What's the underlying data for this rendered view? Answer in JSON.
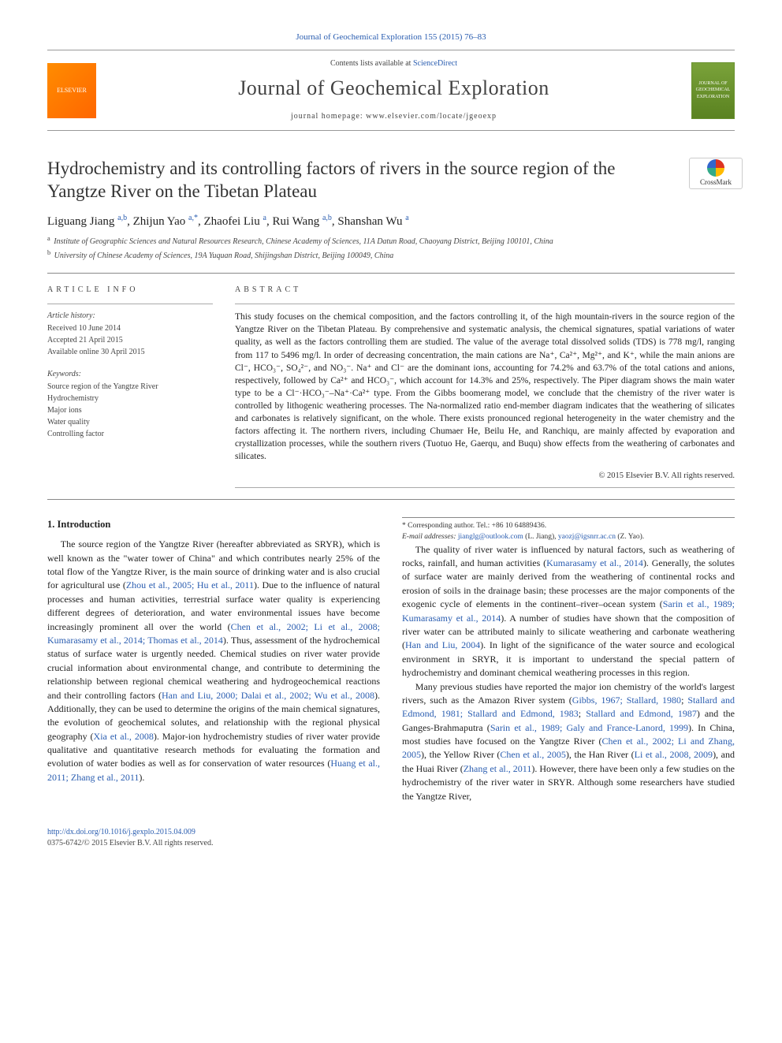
{
  "top_link": {
    "prefix": "Journal of Geochemical Exploration 155 (2015) 76–83"
  },
  "header": {
    "contents_line_prefix": "Contents lists available at ",
    "contents_line_link": "ScienceDirect",
    "journal_title": "Journal of Geochemical Exploration",
    "homepage_prefix": "journal homepage: ",
    "homepage_url": "www.elsevier.com/locate/jgeoexp",
    "elsevier_label": "ELSEVIER",
    "cover_label": "JOURNAL OF GEOCHEMICAL EXPLORATION"
  },
  "article": {
    "title": "Hydrochemistry and its controlling factors of rivers in the source region of the Yangtze River on the Tibetan Plateau",
    "crossmark_label": "CrossMark",
    "authors_html": "Liguang Jiang <sup>a,b</sup>, Zhijun Yao <sup>a,*</sup>, Zhaofei Liu <sup>a</sup>, Rui Wang <sup>a,b</sup>, Shanshan Wu <sup>a</sup>",
    "affiliations": [
      {
        "sup": "a",
        "text": "Institute of Geographic Sciences and Natural Resources Research, Chinese Academy of Sciences, 11A Datun Road, Chaoyang District, Beijing 100101, China"
      },
      {
        "sup": "b",
        "text": "University of Chinese Academy of Sciences, 19A Yuquan Road, Shijingshan District, Beijing 100049, China"
      }
    ]
  },
  "info": {
    "heading": "ARTICLE INFO",
    "history_label": "Article history:",
    "history": [
      "Received 10 June 2014",
      "Accepted 21 April 2015",
      "Available online 30 April 2015"
    ],
    "keywords_label": "Keywords:",
    "keywords": [
      "Source region of the Yangtze River",
      "Hydrochemistry",
      "Major ions",
      "Water quality",
      "Controlling factor"
    ]
  },
  "abstract": {
    "heading": "ABSTRACT",
    "text": "This study focuses on the chemical composition, and the factors controlling it, of the high mountain-rivers in the source region of the Yangtze River on the Tibetan Plateau. By comprehensive and systematic analysis, the chemical signatures, spatial variations of water quality, as well as the factors controlling them are studied. The value of the average total dissolved solids (TDS) is 778 mg/l, ranging from 117 to 5496 mg/l. In order of decreasing concentration, the main cations are Na⁺, Ca²⁺, Mg²⁺, and K⁺, while the main anions are Cl⁻, HCO₃⁻, SO₄²⁻, and NO₃⁻. Na⁺ and Cl⁻ are the dominant ions, accounting for 74.2% and 63.7% of the total cations and anions, respectively, followed by Ca²⁺ and HCO₃⁻, which account for 14.3% and 25%, respectively. The Piper diagram shows the main water type to be a Cl⁻·HCO₃⁻–Na⁺·Ca²⁺ type. From the Gibbs boomerang model, we conclude that the chemistry of the river water is controlled by lithogenic weathering processes. The Na-normalized ratio end-member diagram indicates that the weathering of silicates and carbonates is relatively significant, on the whole. There exists pronounced regional heterogeneity in the water chemistry and the factors affecting it. The northern rivers, including Chumaer He, Beilu He, and Ranchiqu, are mainly affected by evaporation and crystallization processes, while the southern rivers (Tuotuo He, Gaerqu, and Buqu) show effects from the weathering of carbonates and silicates.",
    "copyright": "© 2015 Elsevier B.V. All rights reserved."
  },
  "body": {
    "section_heading": "1. Introduction",
    "p1": "The source region of the Yangtze River (hereafter abbreviated as SRYR), which is well known as the \"water tower of China\" and which contributes nearly 25% of the total flow of the Yangtze River, is the main source of drinking water and is also crucial for agricultural use (",
    "p1_cite1": "Zhou et al., 2005; Hu et al., 2011",
    "p1b": "). Due to the influence of natural processes and human activities, terrestrial surface water quality is experiencing different degrees of deterioration, and water environmental issues have become increasingly prominent all over the world (",
    "p1_cite2": "Chen et al., 2002; Li et al., 2008; Kumarasamy et al., 2014; Thomas et al., 2014",
    "p1c": "). Thus, assessment of the hydrochemical status of surface water is urgently needed. Chemical studies on river water provide crucial information about environmental change, and contribute to determining the relationship between regional chemical weathering and hydrogeochemical reactions and their controlling factors (",
    "p1_cite3": "Han and Liu, 2000; Dalai et al., 2002; Wu et al., 2008",
    "p1d": "). Additionally, they can be used to determine the origins of the main chemical signatures, the evolution of geochemical solutes, and relationship with the regional physical geography (",
    "p1_cite4": "Xia et al., 2008",
    "p1e": "). Major-ion hydrochemistry studies of river water provide qualitative and quantitative research methods for evaluating the formation and evolution of water bodies as well as for conservation of water resources (",
    "p1_cite5": "Huang et al., 2011; Zhang et al., 2011",
    "p1f": ").",
    "p2a": "The quality of river water is influenced by natural factors, such as weathering of rocks, rainfall, and human activities (",
    "p2_cite1": "Kumarasamy et al., 2014",
    "p2b": "). Generally, the solutes of surface water are mainly derived from the weathering of continental rocks and erosion of soils in the drainage basin; these processes are the major components of the exogenic cycle of elements in the continent–river–ocean system (",
    "p2_cite2": "Sarin et al., 1989; Kumarasamy et al., 2014",
    "p2c": "). A number of studies have shown that the composition of river water can be attributed mainly to silicate weathering and carbonate weathering (",
    "p2_cite3": "Han and Liu, 2004",
    "p2d": "). In light of the significance of the water source and ecological environment in SRYR, it is important to understand the special pattern of hydrochemistry and dominant chemical weathering processes in this region.",
    "p3a": "Many previous studies have reported the major ion chemistry of the world's largest rivers, such as the Amazon River system (",
    "p3_cite1": "Gibbs, 1967; Stallard, 1980",
    "p3b": "; ",
    "p3_cite2": "Stallard and Edmond, 1981; Stallard and Edmond, 1983",
    "p3c": "; ",
    "p3_cite3": "Stallard and Edmond, 1987",
    "p3d": ") and the Ganges-Brahmaputra (",
    "p3_cite4": "Sarin et al., 1989; Galy and France-Lanord, 1999",
    "p3e": "). In China, most studies have focused on the Yangtze River (",
    "p3_cite5": "Chen et al., 2002; Li and Zhang, 2005",
    "p3f": "), the Yellow River (",
    "p3_cite6": "Chen et al., 2005",
    "p3g": "), the Han River (",
    "p3_cite7": "Li et al., 2008, 2009",
    "p3h": "), and the Huai River (",
    "p3_cite8": "Zhang et al., 2011",
    "p3i": "). However, there have been only a few studies on the hydrochemistry of the river water in SRYR. Although some researchers have studied the Yangtze River,"
  },
  "footnote": {
    "corr": "* Corresponding author. Tel.: +86 10 64889436.",
    "emails_label": "E-mail addresses: ",
    "email1": "jianglg@outlook.com",
    "email1_name": " (L. Jiang), ",
    "email2": "yaozj@igsnrr.ac.cn",
    "email2_name": " (Z. Yao)."
  },
  "footer": {
    "doi": "http://dx.doi.org/10.1016/j.gexplo.2015.04.009",
    "issn_line": "0375-6742/© 2015 Elsevier B.V. All rights reserved."
  },
  "colors": {
    "link": "#2a5db0",
    "text": "#222222",
    "rule": "#888888"
  }
}
